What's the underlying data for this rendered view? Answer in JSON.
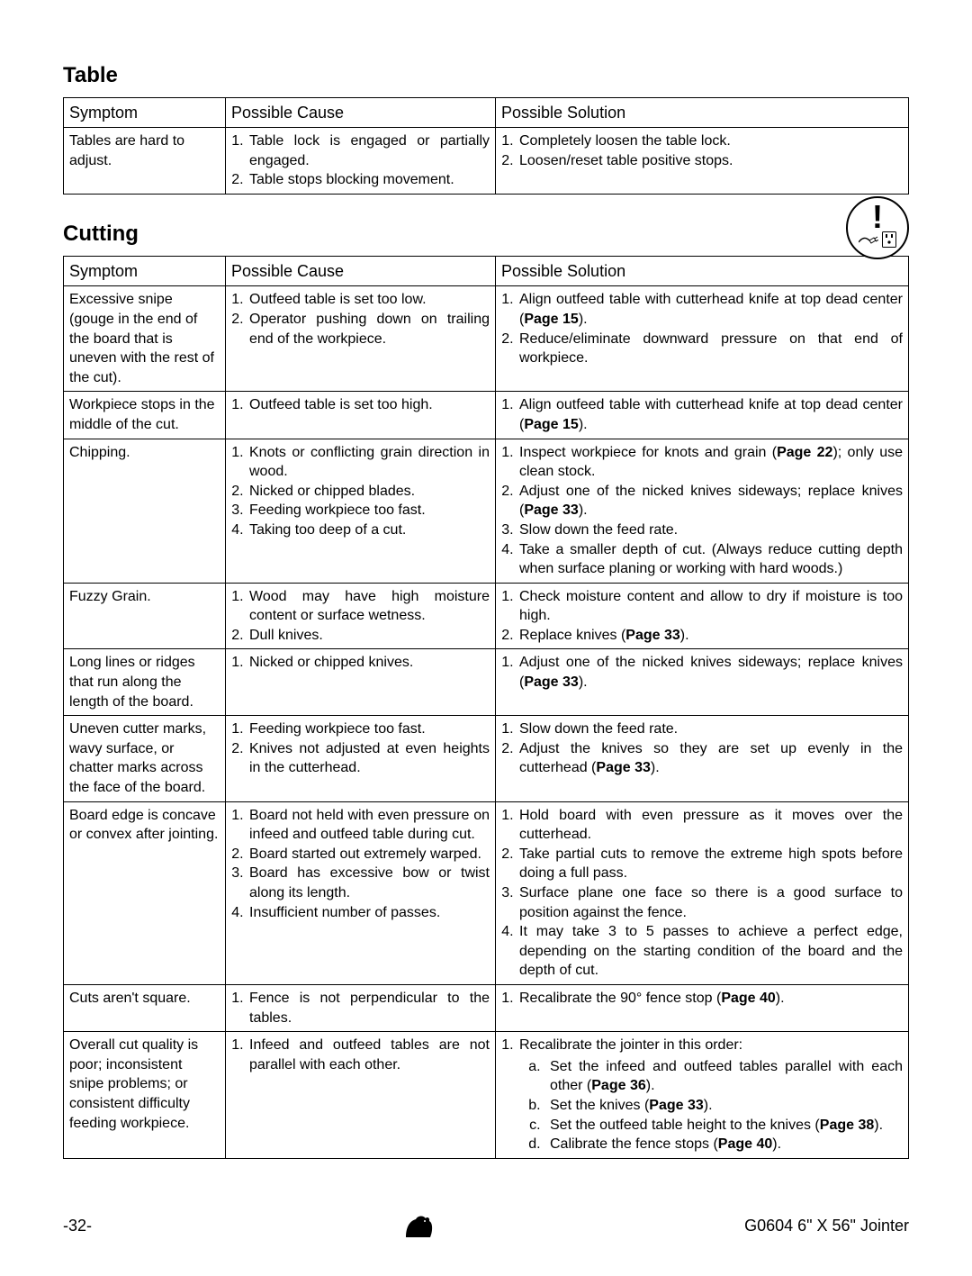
{
  "sections": {
    "table": {
      "title": "Table",
      "headers": {
        "symptom": "Symptom",
        "cause": "Possible Cause",
        "solution": "Possible Solution"
      },
      "rows": [
        {
          "symptom": "Tables are hard to adjust.",
          "causes": [
            "Table lock is engaged or partially engaged.",
            "Table stops blocking movement."
          ],
          "solutions": [
            "Completely loosen the table lock.",
            "Loosen/reset table positive stops."
          ]
        }
      ]
    },
    "cutting": {
      "title": "Cutting",
      "headers": {
        "symptom": "Symptom",
        "cause": "Possible Cause",
        "solution": "Possible Solution"
      },
      "rows": [
        {
          "symptom": "Excessive snipe (gouge in the end of the board that is uneven with the rest of the cut).",
          "causes": [
            "Outfeed table is set too low.",
            "Operator pushing down on trailing end of the workpiece."
          ],
          "solutions_html": [
            "Align outfeed table with cutterhead knife at top dead center (<b>Page 15</b>).",
            "Reduce/eliminate downward pressure on that end of workpiece."
          ]
        },
        {
          "symptom": "Workpiece stops in the middle of the cut.",
          "causes": [
            "Outfeed table is set too high."
          ],
          "solutions_html": [
            "Align outfeed table with cutterhead knife at top dead center (<b>Page 15</b>)."
          ]
        },
        {
          "symptom": "Chipping.",
          "causes": [
            "Knots or conflicting grain direction in wood.",
            "Nicked or chipped blades.",
            "Feeding workpiece too fast.",
            "Taking too deep of a cut."
          ],
          "solutions_html": [
            "Inspect workpiece for knots and grain (<b>Page 22</b>); only use clean stock.",
            "Adjust one of the nicked knives sideways; replace knives (<b>Page 33</b>).",
            "Slow down the feed rate.",
            "Take a smaller depth of cut. (Always reduce cutting depth when surface planing or working with hard woods.)"
          ]
        },
        {
          "symptom": "Fuzzy Grain.",
          "causes": [
            "Wood may have high moisture content or surface wetness.",
            "Dull knives."
          ],
          "solutions_html": [
            "Check moisture content and allow to dry if moisture is too high.",
            "Replace knives (<b>Page 33</b>)."
          ]
        },
        {
          "symptom": "Long lines or ridges that run along the length of the board.",
          "causes": [
            "Nicked or chipped knives."
          ],
          "solutions_html": [
            "Adjust one of the nicked knives sideways; replace knives (<b>Page 33</b>)."
          ]
        },
        {
          "symptom": "Uneven cutter marks, wavy surface, or chatter marks across the face of the board.",
          "causes": [
            "Feeding workpiece too fast.",
            "Knives not adjusted at even heights in the cutterhead."
          ],
          "solutions_html": [
            "Slow down the feed rate.",
            "Adjust the knives so they are set up evenly in the cutterhead (<b>Page 33</b>)."
          ]
        },
        {
          "symptom": "Board edge is concave or convex after jointing.",
          "causes": [
            "Board not held with even pressure on infeed and outfeed table during cut.",
            "Board started out extremely warped.",
            "Board has excessive bow or twist along its length.",
            "Insufficient number of passes."
          ],
          "solutions_html": [
            "Hold board with even pressure as it moves over the cutterhead.",
            "Take partial cuts to remove the extreme high spots before doing a full pass.",
            "Surface plane one face so there is a good surface to position against the fence.",
            "It may take 3 to 5 passes to achieve a perfect edge, depending on the starting condition of the board and the depth of cut."
          ]
        },
        {
          "symptom": "Cuts aren't square.",
          "causes": [
            "Fence is not perpendicular to the tables."
          ],
          "solutions_html": [
            "Recalibrate the 90° fence stop (<b>Page 40</b>)."
          ]
        },
        {
          "symptom": "Overall cut quality is poor; inconsistent snipe problems; or consistent difficulty feeding workpiece.",
          "causes": [
            "Infeed and outfeed tables are not parallel with each other."
          ],
          "solution_lead_html": "Recalibrate the jointer in this order:",
          "solution_sub_html": [
            "Set the infeed and outfeed tables parallel with each other (<b>Page 36</b>).",
            "Set the knives (<b>Page 33</b>).",
            "Set the outfeed table height to the knives (<b>Page 38</b>).",
            "Calibrate the fence stops (<b>Page 40</b>)."
          ]
        }
      ]
    }
  },
  "footer": {
    "page": "-32-",
    "model": "G0604 6\" X 56\" Jointer"
  },
  "colors": {
    "text": "#000000",
    "bg": "#ffffff",
    "border": "#000000"
  },
  "typography": {
    "heading_pt": 18,
    "body_pt": 12,
    "th_pt": 13
  },
  "icons": {
    "warning": "unplug-warning-icon",
    "logo": "grizzly-bear-logo"
  }
}
